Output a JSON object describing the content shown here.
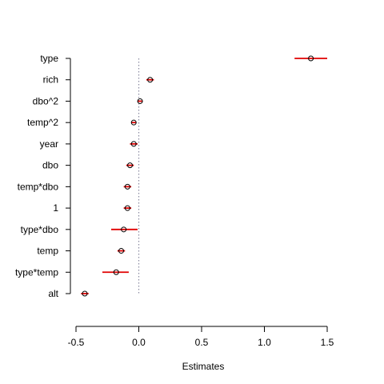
{
  "chart_data": {
    "type": "scatter",
    "title": "",
    "xlabel": "Estimates",
    "ylabel": "",
    "xlim": [
      -0.5,
      1.5
    ],
    "x_ticks": [
      "-0.5",
      "0.0",
      "0.5",
      "1.0",
      "1.5"
    ],
    "reference_line_x": 0,
    "categories": [
      "type",
      "rich",
      "dbo^2",
      "temp^2",
      "year",
      "dbo",
      "temp*dbo",
      "1",
      "type*dbo",
      "temp",
      "type*temp",
      "alt"
    ],
    "estimates": [
      1.37,
      0.09,
      0.01,
      -0.04,
      -0.04,
      -0.07,
      -0.09,
      -0.09,
      -0.12,
      -0.14,
      -0.18,
      -0.43
    ],
    "lower": [
      1.24,
      0.06,
      -0.01,
      -0.06,
      -0.07,
      -0.1,
      -0.12,
      -0.12,
      -0.22,
      -0.17,
      -0.29,
      -0.46
    ],
    "upper": [
      1.5,
      0.12,
      0.03,
      -0.02,
      -0.01,
      -0.04,
      -0.06,
      -0.06,
      -0.01,
      -0.11,
      -0.08,
      -0.4
    ],
    "colors": {
      "interval": "#e00000",
      "point": "#000000",
      "reference": "#8a8aa0",
      "axis": "#000000"
    },
    "grid": false,
    "legend": "none"
  }
}
